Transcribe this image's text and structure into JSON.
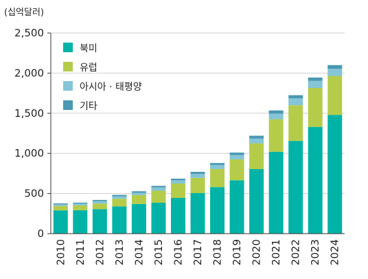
{
  "chart_data": {
    "type": "bar",
    "stacked": true,
    "unit_label": "(십억달러)",
    "categories": [
      "2010",
      "2011",
      "2012",
      "2013",
      "2014",
      "2015",
      "2016",
      "2017",
      "2018",
      "2019",
      "2020",
      "2021",
      "2022",
      "2023",
      "2024"
    ],
    "series": [
      {
        "name": "북미",
        "color": "#00b3a6",
        "values": [
          290,
          292,
          305,
          340,
          370,
          385,
          445,
          505,
          580,
          665,
          805,
          1020,
          1155,
          1330,
          1480
        ]
      },
      {
        "name": "유럽",
        "color": "#b5cc4a",
        "values": [
          55,
          60,
          70,
          95,
          110,
          150,
          180,
          190,
          225,
          260,
          320,
          405,
          445,
          485,
          485
        ]
      },
      {
        "name": "아시아 · 태평양",
        "color": "#85c5d7",
        "values": [
          20,
          22,
          30,
          30,
          30,
          40,
          40,
          50,
          50,
          55,
          60,
          70,
          85,
          90,
          90
        ]
      },
      {
        "name": "기타",
        "color": "#4a98b2",
        "values": [
          12,
          12,
          15,
          18,
          18,
          20,
          20,
          25,
          25,
          30,
          35,
          40,
          40,
          40,
          45
        ]
      }
    ],
    "y_ticks": [
      "0",
      "500",
      "1,000",
      "1,500",
      "2,000",
      "2,500"
    ],
    "ylim": [
      0,
      2500
    ],
    "grid": true,
    "legend_position": "top-left"
  }
}
